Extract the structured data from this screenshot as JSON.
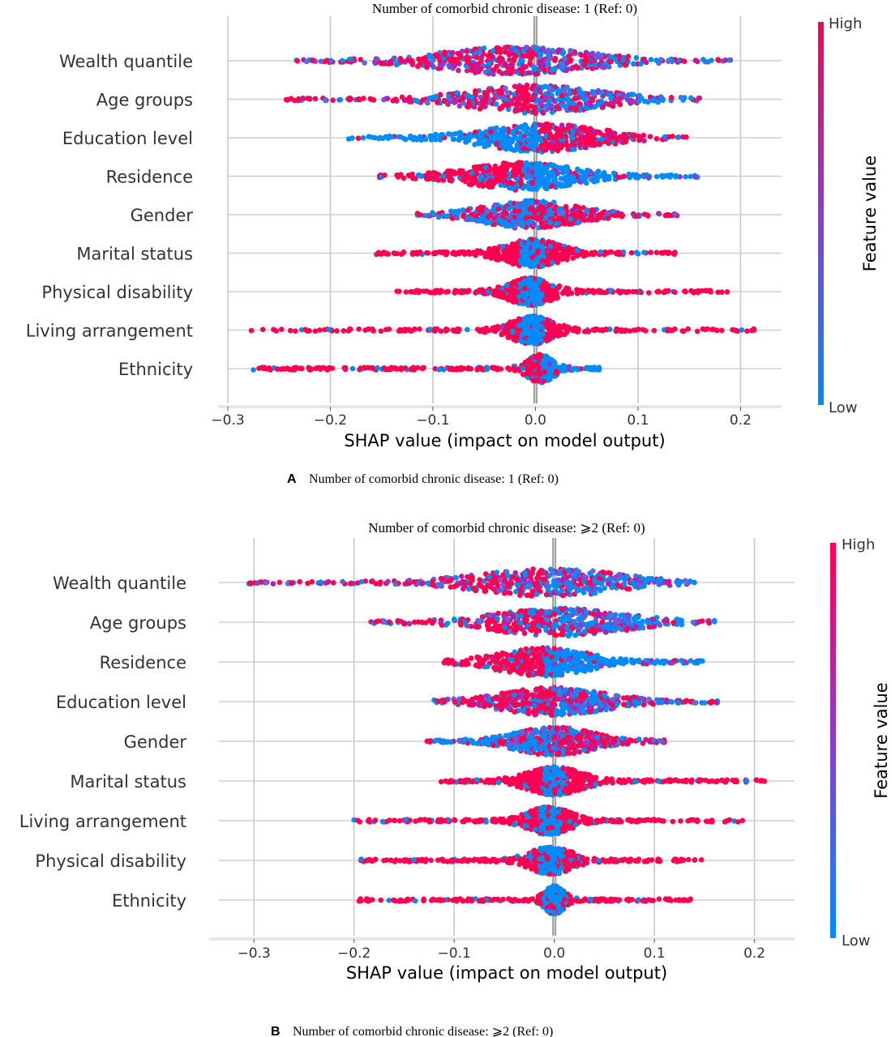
{
  "chart_data": [
    {
      "type": "scatter",
      "subtype": "shap-beeswarm",
      "title": "Number of comorbid chronic disease: 1 (Ref: 0)",
      "caption_letter": "A",
      "caption_text": "Number of comorbid chronic disease: 1 (Ref: 0)",
      "xlabel": "SHAP value (impact on model output)",
      "xlim": [
        -0.3,
        0.24
      ],
      "xticks": [
        -0.3,
        -0.2,
        -0.1,
        0.0,
        0.1,
        0.2
      ],
      "xtick_labels": [
        "−0.3",
        "−0.2",
        "−0.1",
        "0.0",
        "0.1",
        "0.2"
      ],
      "colorbar": {
        "label": "Feature value",
        "high": "High",
        "low": "Low",
        "high_color": "#ff0052",
        "mid_color": "#8b3cd0",
        "low_color": "#008bfb"
      },
      "grid": true,
      "features": [
        {
          "name": "Wealth quantile",
          "min": -0.233,
          "max": 0.19,
          "peak": -0.02,
          "spread": 0.055,
          "color_mode": "mix_lowright"
        },
        {
          "name": "Age groups",
          "min": -0.243,
          "max": 0.16,
          "peak": 0.0,
          "spread": 0.05,
          "color_mode": "mix_highleft"
        },
        {
          "name": "Education level",
          "min": -0.182,
          "max": 0.147,
          "peak": 0.005,
          "spread": 0.045,
          "color_mode": "low_left"
        },
        {
          "name": "Residence",
          "min": -0.152,
          "max": 0.158,
          "peak": -0.012,
          "spread": 0.04,
          "color_mode": "high_left"
        },
        {
          "name": "Gender",
          "min": -0.115,
          "max": 0.138,
          "peak": -0.005,
          "spread": 0.035,
          "color_mode": "mix_lowleft"
        },
        {
          "name": "Marital status",
          "min": -0.155,
          "max": 0.136,
          "peak": -0.003,
          "spread": 0.02,
          "color_mode": "high_tails"
        },
        {
          "name": "Physical disability",
          "min": -0.135,
          "max": 0.187,
          "peak": -0.005,
          "spread": 0.015,
          "color_mode": "high_tails"
        },
        {
          "name": "Living arrangement",
          "min": -0.277,
          "max": 0.213,
          "peak": -0.003,
          "spread": 0.015,
          "color_mode": "high_tails"
        },
        {
          "name": "Ethnicity",
          "min": -0.275,
          "max": 0.062,
          "peak": 0.005,
          "spread": 0.008,
          "color_mode": "high_left"
        }
      ]
    },
    {
      "type": "scatter",
      "subtype": "shap-beeswarm",
      "title": "Number of comorbid chronic disease: ⩾2 (Ref: 0)",
      "caption_letter": "B",
      "caption_text": "Number of comorbid chronic disease: ⩾2 (Ref: 0)",
      "xlabel": "SHAP value (impact on model output)",
      "xlim": [
        -0.335,
        0.24
      ],
      "xticks": [
        -0.3,
        -0.2,
        -0.1,
        0.0,
        0.1,
        0.2
      ],
      "xtick_labels": [
        "−0.3",
        "−0.2",
        "−0.1",
        "0.0",
        "0.1",
        "0.2"
      ],
      "colorbar": {
        "label": "Feature value",
        "high": "High",
        "low": "Low",
        "high_color": "#ff0052",
        "mid_color": "#8b3cd0",
        "low_color": "#008bfb"
      },
      "grid": true,
      "features": [
        {
          "name": "Wealth quantile",
          "min": -0.305,
          "max": 0.14,
          "peak": -0.005,
          "spread": 0.055,
          "color_mode": "mix_highleft"
        },
        {
          "name": "Age groups",
          "min": -0.183,
          "max": 0.16,
          "peak": 0.005,
          "spread": 0.05,
          "color_mode": "mix_highleft"
        },
        {
          "name": "Residence",
          "min": -0.11,
          "max": 0.148,
          "peak": -0.01,
          "spread": 0.035,
          "color_mode": "high_left"
        },
        {
          "name": "Education level",
          "min": -0.12,
          "max": 0.163,
          "peak": 0.0,
          "spread": 0.04,
          "color_mode": "mix_highleft"
        },
        {
          "name": "Gender",
          "min": -0.127,
          "max": 0.11,
          "peak": 0.0,
          "spread": 0.03,
          "color_mode": "mix_lowleft"
        },
        {
          "name": "Marital status",
          "min": -0.113,
          "max": 0.21,
          "peak": 0.0,
          "spread": 0.02,
          "color_mode": "high_tails"
        },
        {
          "name": "Living arrangement",
          "min": -0.2,
          "max": 0.188,
          "peak": -0.005,
          "spread": 0.015,
          "color_mode": "high_tails"
        },
        {
          "name": "Physical disability",
          "min": -0.193,
          "max": 0.147,
          "peak": -0.003,
          "spread": 0.015,
          "color_mode": "high_tails"
        },
        {
          "name": "Ethnicity",
          "min": -0.195,
          "max": 0.136,
          "peak": 0.0,
          "spread": 0.006,
          "color_mode": "high_tails"
        }
      ]
    }
  ]
}
